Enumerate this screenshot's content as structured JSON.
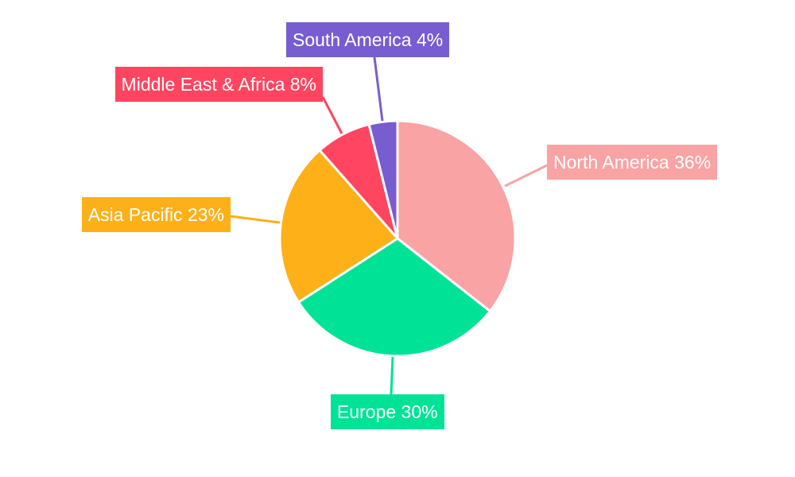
{
  "chart_data": {
    "type": "pie",
    "title": "",
    "slices": [
      {
        "name": "North America",
        "value": 35.6,
        "label": "North America 36%",
        "color": "#F9A3A4"
      },
      {
        "name": "Europe",
        "value": 30.3,
        "label": "Europe 30%",
        "color": "#00E396"
      },
      {
        "name": "Asia Pacific",
        "value": 22.6,
        "label": "Asia Pacific 23%",
        "color": "#FEB019"
      },
      {
        "name": "Middle East & Africa",
        "value": 7.6,
        "label": "Middle East & Africa 8%",
        "color": "#FF4560"
      },
      {
        "name": "South America",
        "value": 3.9,
        "label": "South America 4%",
        "color": "#775DD0"
      }
    ],
    "start_angle": "top",
    "direction": "clockwise",
    "legend": "none"
  }
}
